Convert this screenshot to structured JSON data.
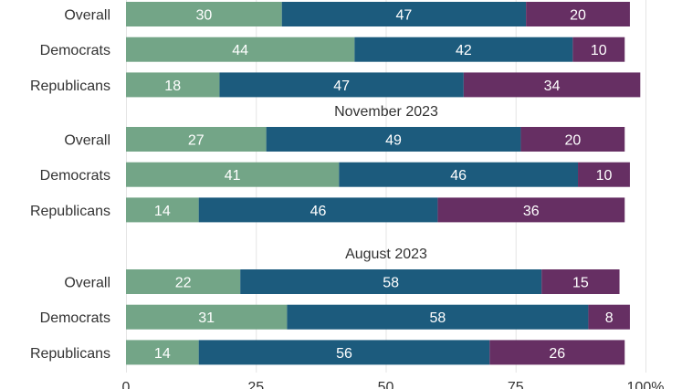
{
  "chart_data": {
    "type": "bar",
    "orientation": "horizontal",
    "stacked": true,
    "xlim": [
      0,
      100
    ],
    "x_ticks": [
      "0",
      "25",
      "50",
      "75",
      "100%"
    ],
    "grid": true,
    "colors": [
      "#73a587",
      "#1c5b7d",
      "#662f63"
    ],
    "groups": [
      {
        "title": "",
        "rows": [
          {
            "label": "Overall",
            "values": [
              30,
              47,
              20
            ]
          },
          {
            "label": "Democrats",
            "values": [
              44,
              42,
              10
            ]
          },
          {
            "label": "Republicans",
            "values": [
              18,
              47,
              34
            ]
          }
        ]
      },
      {
        "title": "November 2023",
        "rows": [
          {
            "label": "Overall",
            "values": [
              27,
              49,
              20
            ]
          },
          {
            "label": "Democrats",
            "values": [
              41,
              46,
              10
            ]
          },
          {
            "label": "Republicans",
            "values": [
              14,
              46,
              36
            ]
          }
        ]
      },
      {
        "title": "August 2023",
        "rows": [
          {
            "label": "Overall",
            "values": [
              22,
              58,
              15
            ]
          },
          {
            "label": "Democrats",
            "values": [
              31,
              58,
              8
            ]
          },
          {
            "label": "Republicans",
            "values": [
              14,
              56,
              26
            ]
          }
        ]
      }
    ]
  }
}
